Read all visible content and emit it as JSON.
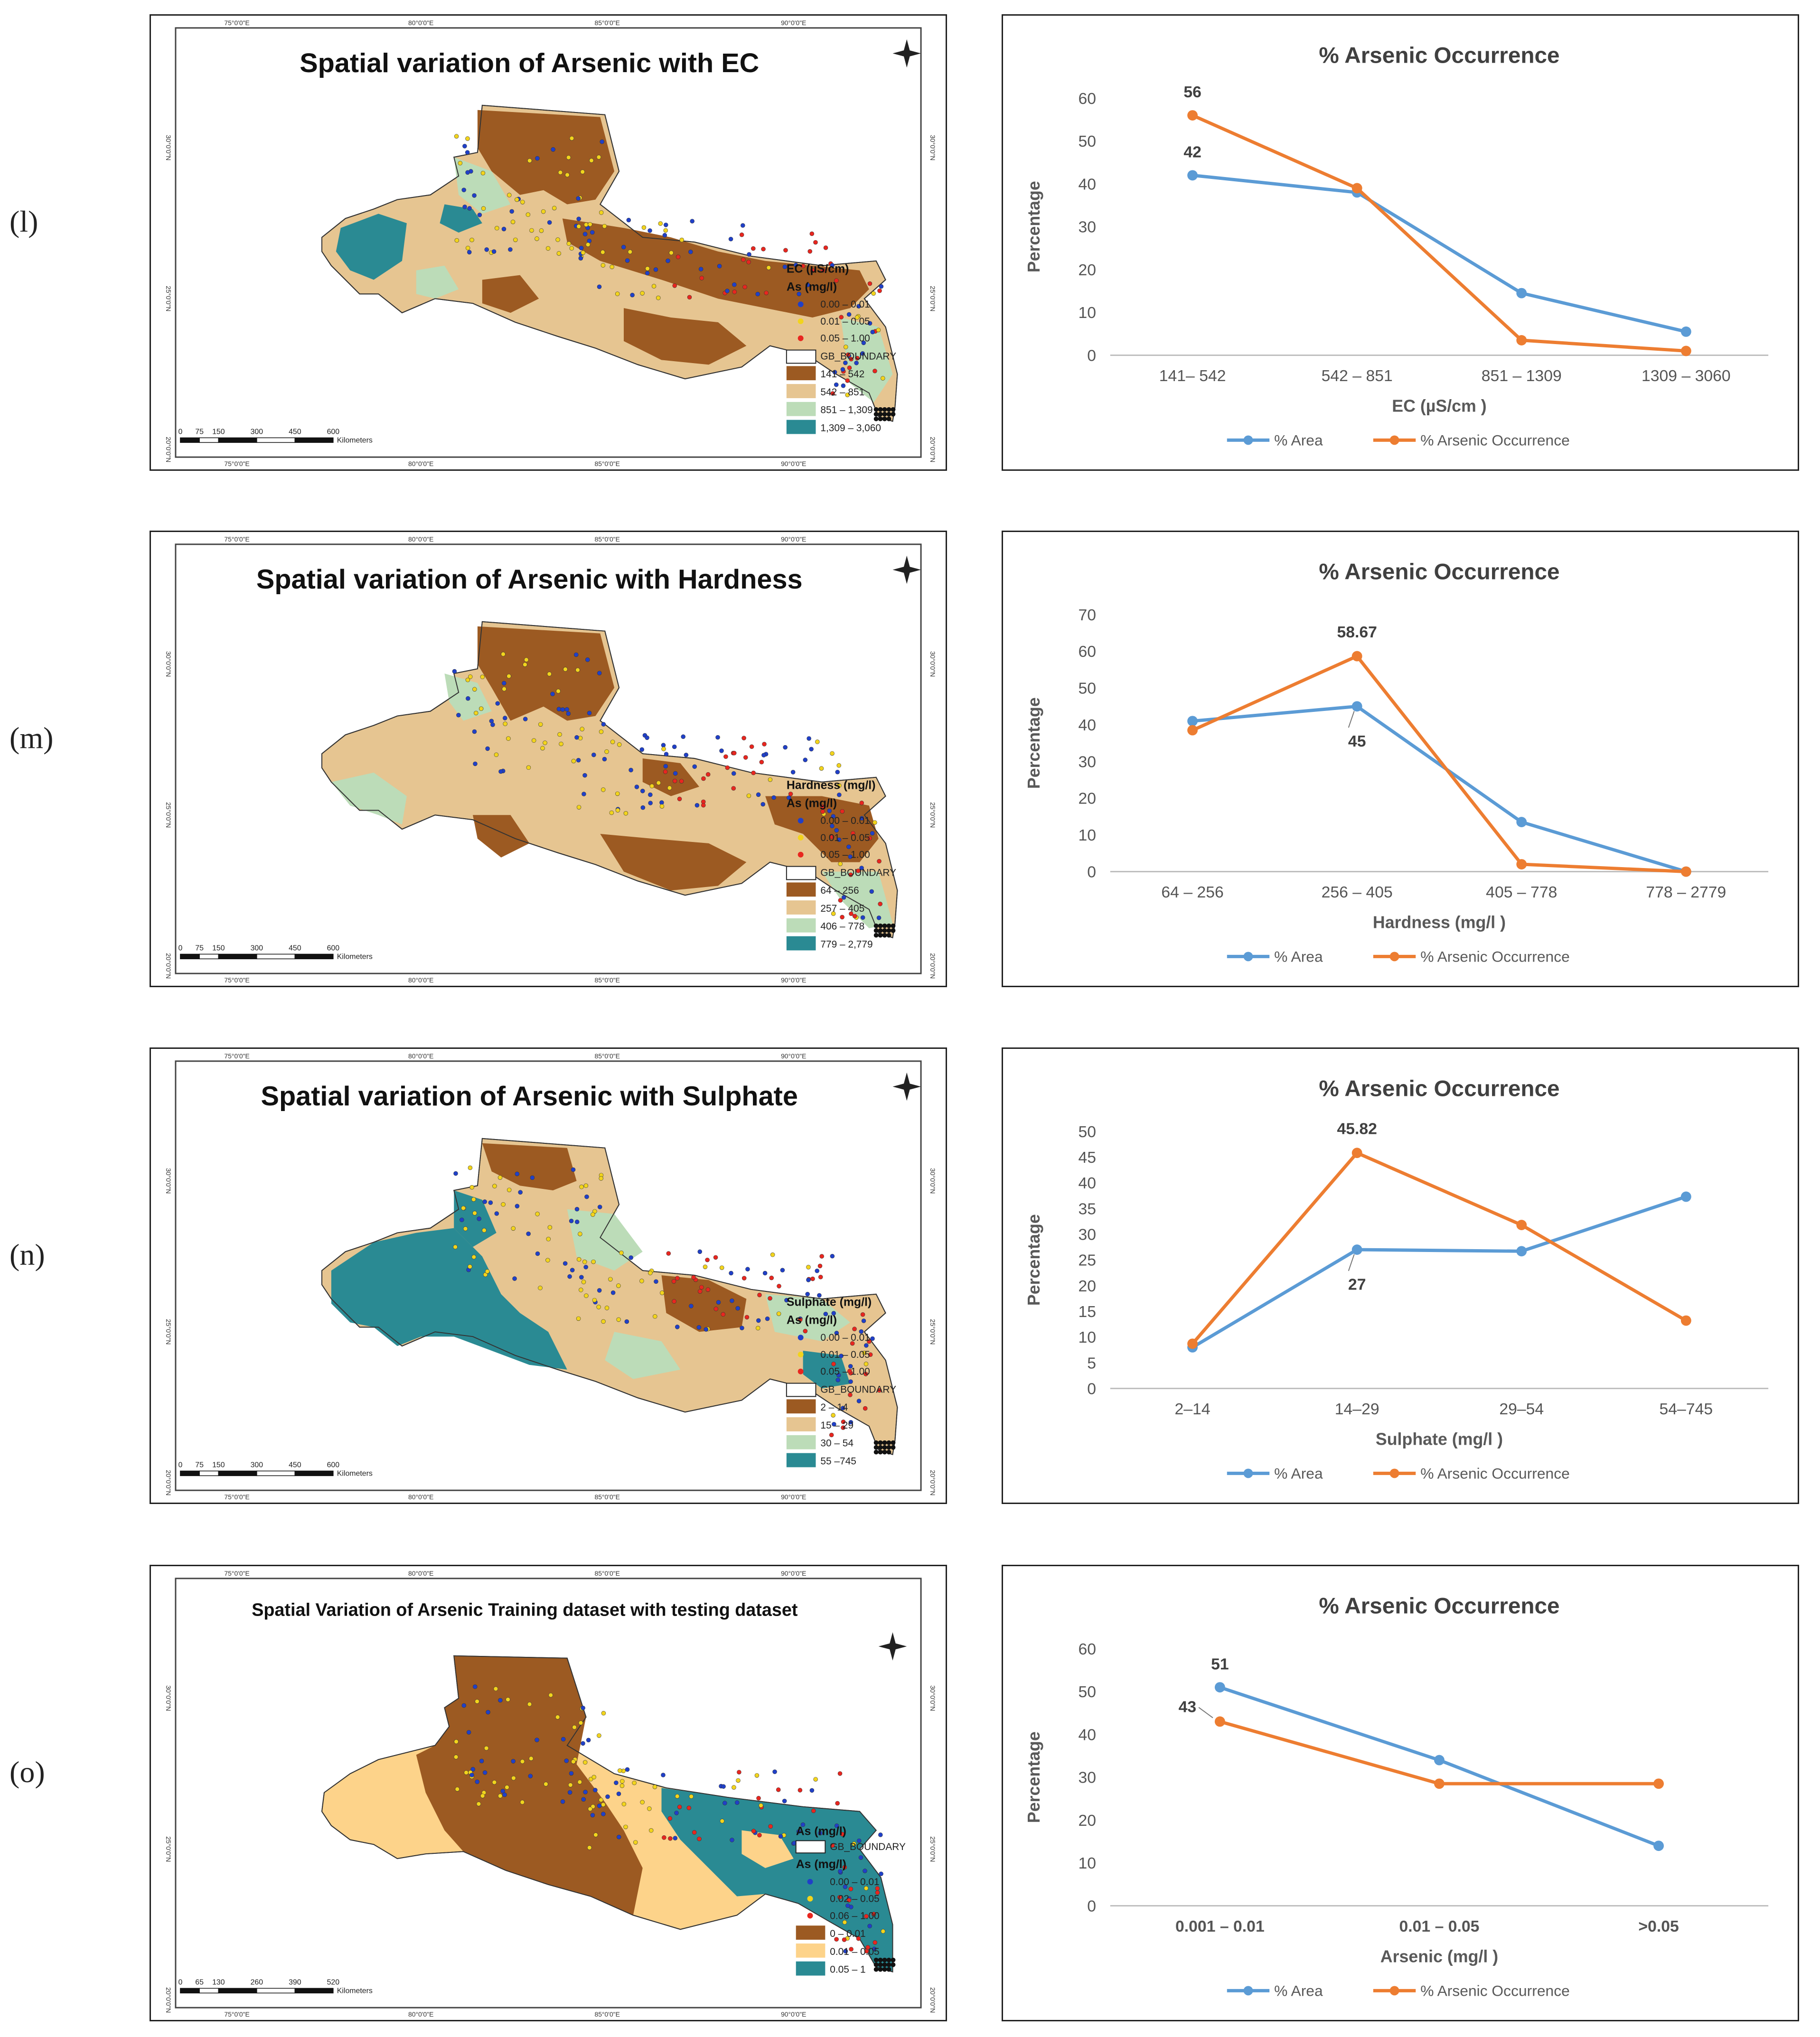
{
  "rows": [
    {
      "label": "(l)",
      "map": {
        "title": "Spatial variation of Arsenic with EC",
        "legend_title": "EC (µS/cm)",
        "as_title": "As (mg/l)",
        "point_classes": [
          "0.00 – 0.01",
          "0.01 – 0.05",
          "0.05 – 1.00"
        ],
        "boundary_label": "GB_BOUNDARY",
        "fill_classes": [
          "141 – 542",
          "542 – 851",
          "851 – 1,309",
          "1,309 – 3,060"
        ],
        "fill_colors": [
          "#9c5a22",
          "#e6c591",
          "#bcdcb8",
          "#2a8a93"
        ],
        "scale_ticks": [
          "0",
          "75",
          "150",
          "300",
          "450",
          "600"
        ],
        "scale_unit": "Kilometers"
      },
      "chart_data": {
        "type": "line",
        "title": "% Arsenic Occurrence",
        "ylabel": "Percentage",
        "xlabel": "EC (µS/cm )",
        "categories": [
          "141– 542",
          "542 – 851",
          "851 – 1309",
          "1309 – 3060"
        ],
        "ylim": [
          0,
          60
        ],
        "yticks": [
          0,
          10,
          20,
          30,
          40,
          50,
          60
        ],
        "series": [
          {
            "name": "% Area",
            "color": "#5b9bd5",
            "values": [
              42,
              38,
              14.5,
              5.5
            ]
          },
          {
            "name": "% Arsenic Occurrence",
            "color": "#ed7d31",
            "values": [
              56,
              39,
              3.5,
              1
            ]
          }
        ],
        "annotations": [
          {
            "text": "56",
            "series": 1,
            "point": 0,
            "pos": "above"
          },
          {
            "text": "42",
            "series": 0,
            "point": 0,
            "pos": "above"
          }
        ]
      }
    },
    {
      "label": "(m)",
      "map": {
        "title": "Spatial variation of Arsenic with Hardness",
        "legend_title": "Hardness (mg/l)",
        "as_title": "As (mg/l)",
        "point_classes": [
          "0.00 – 0.01",
          "0.01 – 0.05",
          "0.05 – 1.00"
        ],
        "boundary_label": "GB_BOUNDARY",
        "fill_classes": [
          "64 – 256",
          "257 – 405",
          "406 – 778",
          "779 – 2,779"
        ],
        "fill_colors": [
          "#9c5a22",
          "#e6c591",
          "#bcdcb8",
          "#2a8a93"
        ],
        "scale_ticks": [
          "0",
          "75",
          "150",
          "300",
          "450",
          "600"
        ],
        "scale_unit": "Kilometers"
      },
      "chart_data": {
        "type": "line",
        "title": "% Arsenic Occurrence",
        "ylabel": "Percentage",
        "xlabel": "Hardness (mg/l )",
        "categories": [
          "64 – 256",
          "256 – 405",
          "405 – 778",
          "778 – 2779"
        ],
        "ylim": [
          0,
          70
        ],
        "yticks": [
          0,
          10,
          20,
          30,
          40,
          50,
          60,
          70
        ],
        "series": [
          {
            "name": "% Area",
            "color": "#5b9bd5",
            "values": [
              41,
              45,
              13.5,
              0
            ]
          },
          {
            "name": "% Arsenic Occurrence",
            "color": "#ed7d31",
            "values": [
              38.5,
              58.67,
              2,
              0
            ]
          }
        ],
        "annotations": [
          {
            "text": "58.67",
            "series": 1,
            "point": 1,
            "pos": "above"
          },
          {
            "text": "45",
            "series": 0,
            "point": 1,
            "pos": "below"
          }
        ]
      }
    },
    {
      "label": "(n)",
      "map": {
        "title": "Spatial variation of Arsenic with Sulphate",
        "legend_title": "Sulphate (mg/l)",
        "as_title": "As (mg/l)",
        "point_classes": [
          "0.00 – 0.01",
          "0.01 – 0.05",
          "0.05 – 1.00"
        ],
        "boundary_label": "GB_BOUNDARY",
        "fill_classes": [
          "2 – 14",
          "15 – 29",
          "30 – 54",
          "55 –745"
        ],
        "fill_colors": [
          "#9c5a22",
          "#e6c591",
          "#bcdcb8",
          "#2a8a93"
        ],
        "scale_ticks": [
          "0",
          "75",
          "150",
          "300",
          "450",
          "600"
        ],
        "scale_unit": "Kilometers"
      },
      "chart_data": {
        "type": "line",
        "title": "% Arsenic Occurrence",
        "ylabel": "Percentage",
        "xlabel": "Sulphate (mg/l )",
        "categories": [
          "2–14",
          "14–29",
          "29–54",
          "54–745"
        ],
        "ylim": [
          0,
          50
        ],
        "yticks": [
          0,
          5,
          10,
          15,
          20,
          25,
          30,
          35,
          40,
          45,
          50
        ],
        "series": [
          {
            "name": "% Area",
            "color": "#5b9bd5",
            "values": [
              8,
              27,
              26.7,
              37.3
            ]
          },
          {
            "name": "% Arsenic Occurrence",
            "color": "#ed7d31",
            "values": [
              8.7,
              45.82,
              31.8,
              13.2
            ]
          }
        ],
        "annotations": [
          {
            "text": "45.82",
            "series": 1,
            "point": 1,
            "pos": "above"
          },
          {
            "text": "27",
            "series": 0,
            "point": 1,
            "pos": "below"
          }
        ]
      }
    },
    {
      "label": "(o)",
      "map": {
        "title": "Spatial Variation of Arsenic Training dataset with testing dataset",
        "legend_title": "As (mg/l)",
        "as_title": "As (mg/l)",
        "point_classes": [
          "0.00 – 0.01",
          "0.02 – 0.05",
          "0.06 – 1.00"
        ],
        "boundary_label": "GB_BOUNDARY",
        "fill_classes": [
          "0 – 0.01",
          "0.01 – 0.05",
          "0.05 – 1"
        ],
        "fill_colors": [
          "#9c5a22",
          "#fdd38a",
          "#2a8a93"
        ],
        "scale_ticks": [
          "0",
          "65",
          "130",
          "260",
          "390",
          "520"
        ],
        "scale_unit": "Kilometers"
      },
      "chart_data": {
        "type": "line",
        "title": "% Arsenic Occurrence",
        "ylabel": "Percentage",
        "xlabel": "Arsenic (mg/l )",
        "categories": [
          "0.001 – 0.01",
          "0.01 – 0.05",
          ">0.05"
        ],
        "ylim": [
          0,
          60
        ],
        "yticks": [
          0,
          10,
          20,
          30,
          40,
          50,
          60
        ],
        "series": [
          {
            "name": "% Area",
            "color": "#5b9bd5",
            "values": [
              51,
              34,
              14
            ]
          },
          {
            "name": "% Arsenic Occurrence",
            "color": "#ed7d31",
            "values": [
              43,
              28.5,
              28.5
            ]
          }
        ],
        "annotations": [
          {
            "text": "51",
            "series": 0,
            "point": 0,
            "pos": "above"
          },
          {
            "text": "43",
            "series": 1,
            "point": 0,
            "pos": "left"
          }
        ]
      }
    }
  ],
  "map_axes": {
    "top": [
      "75°0'0\"E",
      "80°0'0\"E",
      "85°0'0\"E",
      "90°0'0\"E"
    ],
    "side": [
      "30°0'0\"N",
      "25°0'0\"N",
      "20°0'0\"N"
    ]
  }
}
